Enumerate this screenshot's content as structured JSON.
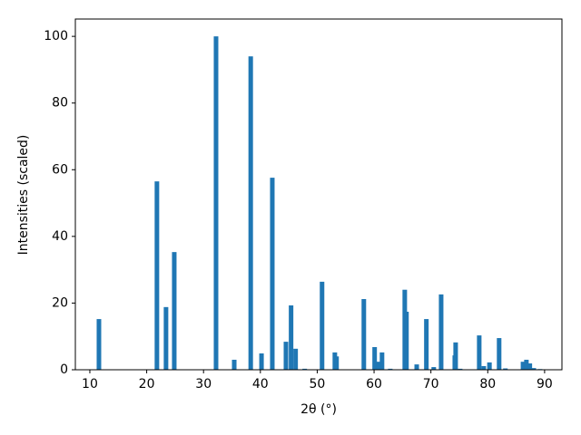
{
  "chart_data": {
    "type": "bar",
    "xlabel": "2θ (°)",
    "ylabel": "Intensities (scaled)",
    "x": [
      11.6,
      21.8,
      23.4,
      24.85,
      32.2,
      35.4,
      38.3,
      40.2,
      42.1,
      44.5,
      45.4,
      46.2,
      47.8,
      50.85,
      53.1,
      53.4,
      58.2,
      60.1,
      60.8,
      61.4,
      62.85,
      65.4,
      65.7,
      67.5,
      69.2,
      70.5,
      71.8,
      74.2,
      74.35,
      75.15,
      78.5,
      79.3,
      80.3,
      82.0,
      83.1,
      86.2,
      86.8,
      87.4,
      88.1,
      89.2
    ],
    "values": [
      15.2,
      56.5,
      18.8,
      35.3,
      100,
      3.0,
      94,
      4.9,
      57.6,
      8.4,
      19.3,
      6.3,
      0.3,
      26.4,
      5.2,
      4.0,
      21.2,
      6.8,
      2.4,
      5.2,
      0.3,
      24,
      17.4,
      1.6,
      15.2,
      0.8,
      22.6,
      4.3,
      8.2,
      0.3,
      10.3,
      1.1,
      2.2,
      9.5,
      0.4,
      2.4,
      3.0,
      1.9,
      0.5,
      0.2
    ],
    "color": "#1f77b4",
    "xlim": [
      7.45,
      93.05
    ],
    "xticks": [
      10,
      20,
      30,
      40,
      50,
      60,
      70,
      80,
      90
    ],
    "ylim": [
      0,
      105.2
    ],
    "yticks": [
      0,
      20,
      40,
      60,
      80,
      100
    ]
  }
}
